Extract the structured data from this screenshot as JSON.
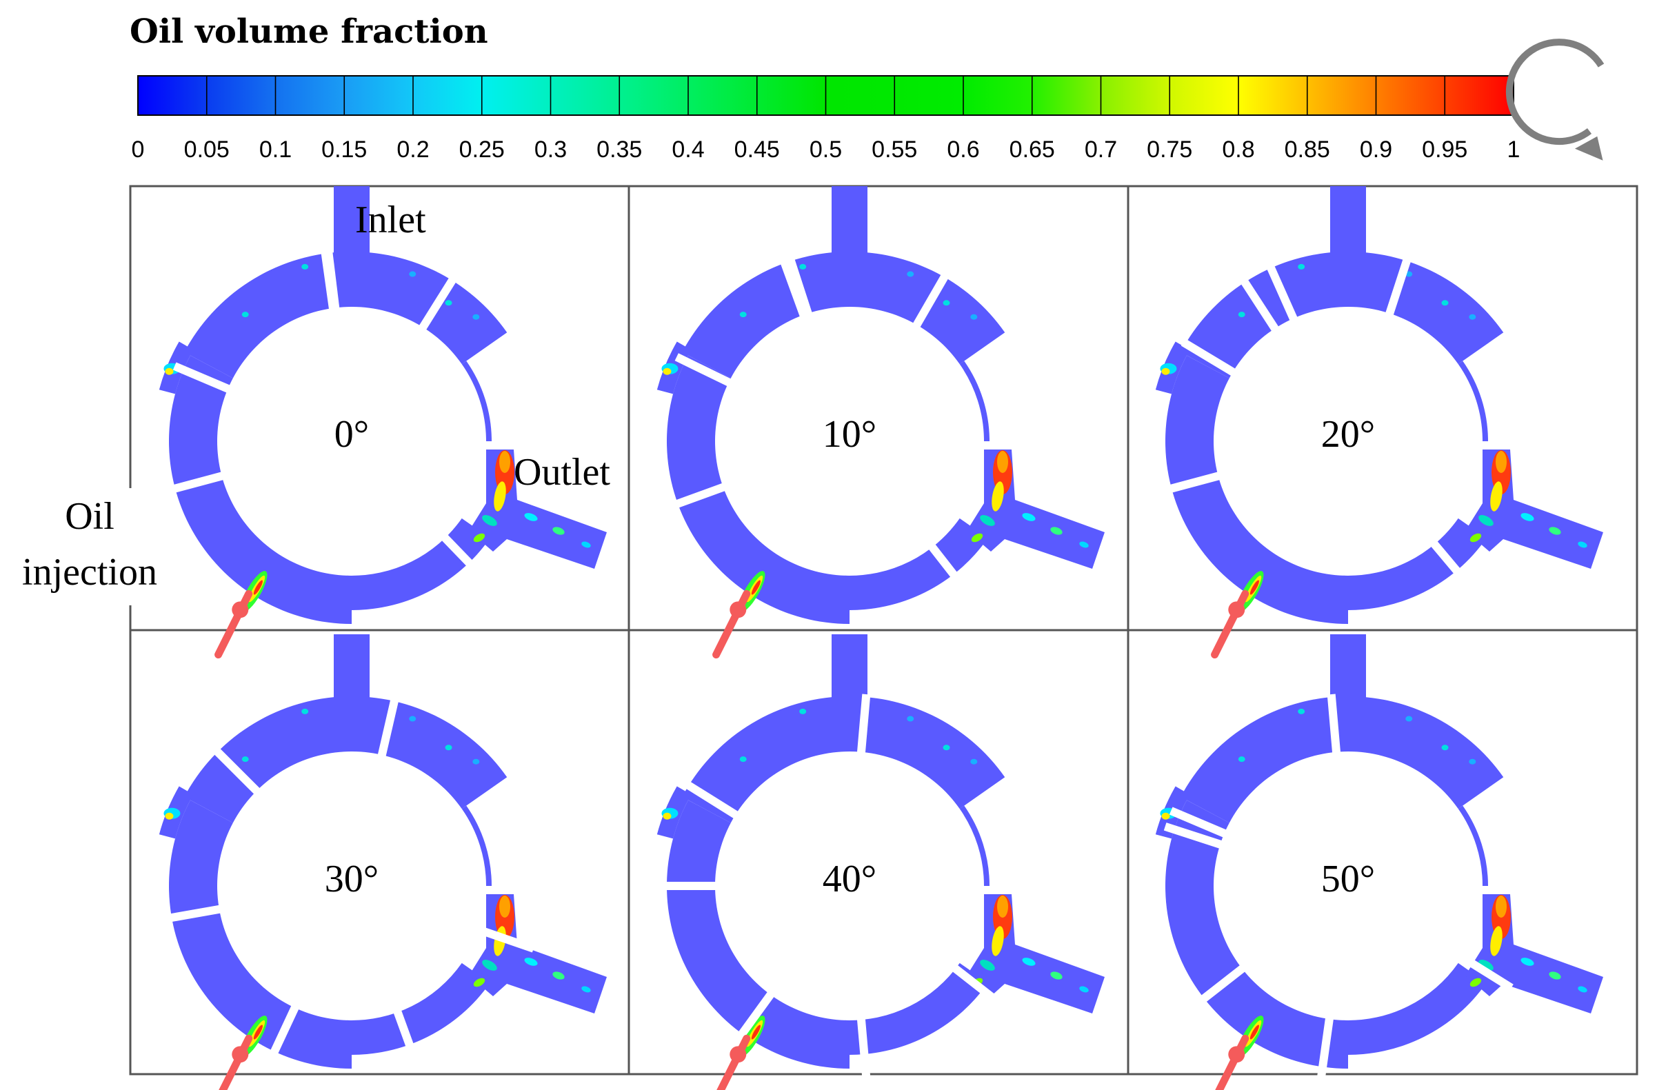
{
  "colorbar": {
    "title": "Oil volume fraction",
    "ticks": [
      "0",
      "0.05",
      "0.1",
      "0.15",
      "0.2",
      "0.25",
      "0.3",
      "0.35",
      "0.4",
      "0.45",
      "0.5",
      "0.55",
      "0.6",
      "0.65",
      "0.7",
      "0.75",
      "0.8",
      "0.85",
      "0.9",
      "0.95",
      "1"
    ],
    "stops": [
      "#0000ff",
      "#0a3cf0",
      "#1471f0",
      "#1a9cf5",
      "#12c8f8",
      "#00f0f0",
      "#00f0c0",
      "#00f090",
      "#00ee60",
      "#00ea30",
      "#00e600",
      "#00e800",
      "#00ec00",
      "#22f000",
      "#88f000",
      "#d0f800",
      "#ffff00",
      "#ffc000",
      "#ff8000",
      "#ff4000",
      "#ff0000"
    ]
  },
  "rotation_indicator": {
    "icon": "clockwise-arrow-icon"
  },
  "labels": {
    "inlet": "Inlet",
    "outlet": "Outlet",
    "oil_line1": "Oil",
    "oil_line2": "injection"
  },
  "panels": [
    {
      "angle_label": "0°",
      "vane_angles": [
        -8,
        32,
        136,
        255,
        293,
        353
      ]
    },
    {
      "angle_label": "10°",
      "vane_angles": [
        -20,
        30,
        142,
        250,
        296,
        342
      ]
    },
    {
      "angle_label": "20°",
      "vane_angles": [
        -33,
        18,
        140,
        255,
        301,
        336
      ]
    },
    {
      "angle_label": "30°",
      "vane_angles": [
        -45,
        13,
        109,
        160,
        205,
        260
      ]
    },
    {
      "angle_label": "40°",
      "vane_angles": [
        -58,
        5,
        128,
        175,
        216,
        270
      ]
    },
    {
      "angle_label": "50°",
      "vane_angles": [
        -67,
        -5,
        122,
        188,
        232,
        288
      ]
    }
  ],
  "colors": {
    "fluid": "#5a5aff",
    "border": "#555555",
    "injector": "#f45b5b"
  }
}
